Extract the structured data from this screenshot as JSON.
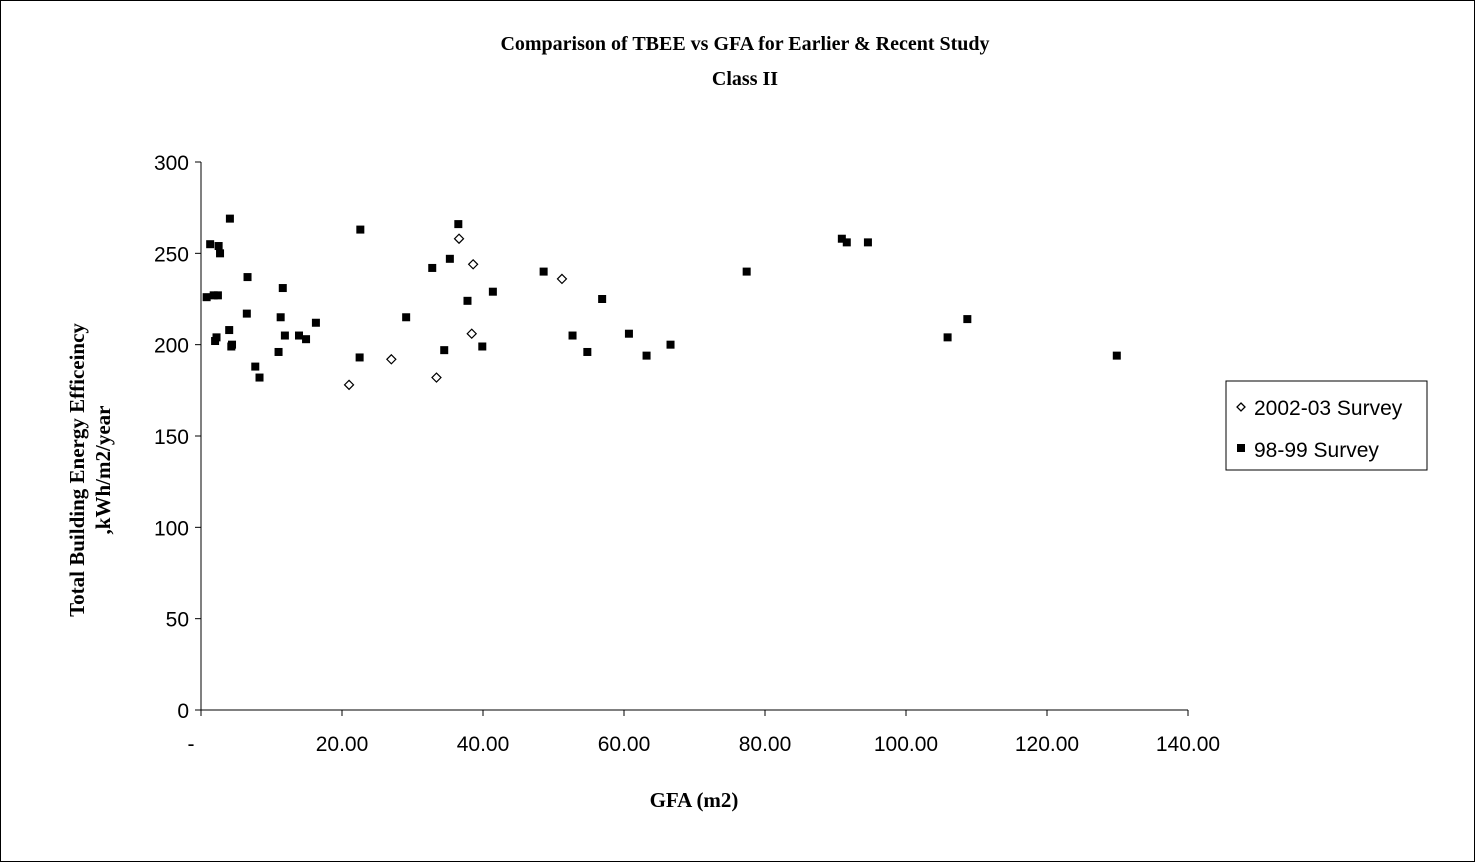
{
  "chart_data": {
    "type": "scatter",
    "title": "Comparison of TBEE vs GFA for Earlier & Recent Study",
    "subtitle": "Class II",
    "xlabel": "GFA (m2)",
    "ylabel_line1": "Total Building Energy Efficeincy",
    "ylabel_line2": ",kWh/m2/year",
    "xlim": [
      0,
      140
    ],
    "ylim": [
      0,
      300
    ],
    "x_ticks": [
      0,
      20,
      40,
      60,
      80,
      100,
      120,
      140
    ],
    "x_tick_labels": [
      "-",
      "20.00",
      "40.00",
      "60.00",
      "80.00",
      "100.00",
      "120.00",
      "140.00"
    ],
    "y_ticks": [
      0,
      50,
      100,
      150,
      200,
      250,
      300
    ],
    "y_tick_labels": [
      "0",
      "50",
      "100",
      "150",
      "200",
      "250",
      "300"
    ],
    "grid": false,
    "legend_position": "right",
    "series": [
      {
        "name": "2002-03 Survey",
        "marker": "diamond-open",
        "color": "#000000",
        "x": [
          21.0,
          27.0,
          33.4,
          36.6,
          38.4,
          38.6,
          51.2
        ],
        "y": [
          178,
          192,
          182,
          258,
          206,
          244,
          236
        ]
      },
      {
        "name": "98-99 Survey",
        "marker": "square-filled",
        "color": "#000000",
        "x": [
          0.8,
          1.3,
          1.8,
          2.0,
          2.2,
          2.4,
          2.5,
          2.7,
          4.0,
          4.1,
          4.3,
          4.4,
          6.5,
          6.6,
          7.7,
          8.3,
          11.0,
          11.3,
          11.6,
          11.9,
          13.9,
          14.9,
          16.3,
          22.5,
          22.6,
          29.1,
          32.8,
          34.5,
          35.3,
          36.5,
          37.8,
          39.9,
          41.4,
          48.6,
          52.7,
          54.8,
          56.9,
          60.7,
          63.2,
          66.6,
          77.4,
          90.9,
          91.6,
          94.6,
          105.9,
          108.7,
          129.9
        ],
        "y": [
          226,
          255,
          227,
          202,
          204,
          227,
          254,
          250,
          208,
          269,
          199,
          200,
          217,
          237,
          188,
          182,
          196,
          215,
          231,
          205,
          205,
          203,
          212,
          193,
          263,
          215,
          242,
          197,
          247,
          266,
          224,
          199,
          229,
          240,
          205,
          196,
          225,
          206,
          194,
          200,
          240,
          258,
          256,
          256,
          204,
          214,
          194
        ]
      }
    ]
  }
}
